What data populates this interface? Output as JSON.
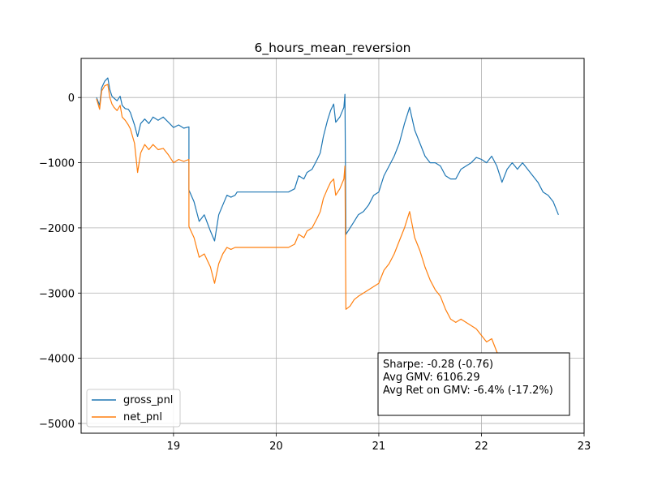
{
  "chart_data": {
    "type": "line",
    "title": "6_hours_mean_reversion",
    "xlabel": "",
    "ylabel": "",
    "xlim": [
      18.1,
      23.0
    ],
    "ylim": [
      -5150,
      600
    ],
    "x_ticks": [
      19,
      20,
      21,
      22,
      23
    ],
    "y_ticks": [
      0,
      -1000,
      -2000,
      -3000,
      -4000,
      -5000
    ],
    "x_tick_labels": [
      "19",
      "20",
      "21",
      "22",
      "23"
    ],
    "y_tick_labels": [
      "0",
      "−1000",
      "−2000",
      "−3000",
      "−4000",
      "−5000"
    ],
    "grid": true,
    "legend_position": "lower-left",
    "series": [
      {
        "name": "gross_pnl",
        "color": "#1f77b4",
        "points": [
          [
            18.25,
            0
          ],
          [
            18.28,
            -120
          ],
          [
            18.3,
            150
          ],
          [
            18.33,
            250
          ],
          [
            18.36,
            300
          ],
          [
            18.38,
            120
          ],
          [
            18.4,
            20
          ],
          [
            18.42,
            -10
          ],
          [
            18.45,
            -50
          ],
          [
            18.48,
            20
          ],
          [
            18.5,
            -120
          ],
          [
            18.53,
            -170
          ],
          [
            18.56,
            -180
          ],
          [
            18.58,
            -230
          ],
          [
            18.62,
            -420
          ],
          [
            18.65,
            -600
          ],
          [
            18.68,
            -400
          ],
          [
            18.72,
            -330
          ],
          [
            18.76,
            -400
          ],
          [
            18.8,
            -300
          ],
          [
            18.85,
            -350
          ],
          [
            18.9,
            -300
          ],
          [
            18.95,
            -380
          ],
          [
            19.0,
            -460
          ],
          [
            19.05,
            -420
          ],
          [
            19.1,
            -470
          ],
          [
            19.15,
            -450
          ],
          [
            19.15,
            -1420
          ],
          [
            19.2,
            -1600
          ],
          [
            19.25,
            -1900
          ],
          [
            19.3,
            -1800
          ],
          [
            19.36,
            -2050
          ],
          [
            19.4,
            -2200
          ],
          [
            19.44,
            -1800
          ],
          [
            19.48,
            -1650
          ],
          [
            19.52,
            -1500
          ],
          [
            19.56,
            -1530
          ],
          [
            19.6,
            -1500
          ],
          [
            19.62,
            -1450
          ],
          [
            19.7,
            -1450
          ],
          [
            19.8,
            -1450
          ],
          [
            19.9,
            -1450
          ],
          [
            20.0,
            -1450
          ],
          [
            20.08,
            -1450
          ],
          [
            20.12,
            -1450
          ],
          [
            20.18,
            -1400
          ],
          [
            20.22,
            -1200
          ],
          [
            20.27,
            -1250
          ],
          [
            20.3,
            -1150
          ],
          [
            20.35,
            -1100
          ],
          [
            20.4,
            -950
          ],
          [
            20.43,
            -850
          ],
          [
            20.46,
            -600
          ],
          [
            20.5,
            -350
          ],
          [
            20.53,
            -200
          ],
          [
            20.56,
            -100
          ],
          [
            20.58,
            -380
          ],
          [
            20.62,
            -300
          ],
          [
            20.66,
            -150
          ],
          [
            20.67,
            50
          ],
          [
            20.68,
            -2100
          ],
          [
            20.72,
            -2000
          ],
          [
            20.76,
            -1900
          ],
          [
            20.8,
            -1800
          ],
          [
            20.85,
            -1750
          ],
          [
            20.9,
            -1650
          ],
          [
            20.95,
            -1500
          ],
          [
            21.0,
            -1450
          ],
          [
            21.05,
            -1200
          ],
          [
            21.1,
            -1050
          ],
          [
            21.15,
            -900
          ],
          [
            21.2,
            -700
          ],
          [
            21.25,
            -400
          ],
          [
            21.3,
            -150
          ],
          [
            21.35,
            -500
          ],
          [
            21.4,
            -700
          ],
          [
            21.45,
            -900
          ],
          [
            21.5,
            -1000
          ],
          [
            21.55,
            -1000
          ],
          [
            21.6,
            -1050
          ],
          [
            21.65,
            -1200
          ],
          [
            21.7,
            -1250
          ],
          [
            21.75,
            -1250
          ],
          [
            21.8,
            -1100
          ],
          [
            21.85,
            -1050
          ],
          [
            21.9,
            -1000
          ],
          [
            21.95,
            -920
          ],
          [
            22.0,
            -950
          ],
          [
            22.05,
            -1000
          ],
          [
            22.1,
            -900
          ],
          [
            22.15,
            -1050
          ],
          [
            22.2,
            -1300
          ],
          [
            22.25,
            -1100
          ],
          [
            22.3,
            -1000
          ],
          [
            22.35,
            -1100
          ],
          [
            22.4,
            -1000
          ],
          [
            22.45,
            -1100
          ],
          [
            22.5,
            -1200
          ],
          [
            22.55,
            -1300
          ],
          [
            22.6,
            -1450
          ],
          [
            22.65,
            -1500
          ],
          [
            22.7,
            -1600
          ],
          [
            22.75,
            -1800
          ]
        ]
      },
      {
        "name": "net_pnl",
        "color": "#ff7f0e",
        "points": [
          [
            18.25,
            -20
          ],
          [
            18.28,
            -180
          ],
          [
            18.3,
            100
          ],
          [
            18.33,
            180
          ],
          [
            18.36,
            200
          ],
          [
            18.38,
            0
          ],
          [
            18.4,
            -100
          ],
          [
            18.42,
            -150
          ],
          [
            18.45,
            -200
          ],
          [
            18.48,
            -120
          ],
          [
            18.5,
            -300
          ],
          [
            18.53,
            -350
          ],
          [
            18.56,
            -420
          ],
          [
            18.58,
            -480
          ],
          [
            18.62,
            -700
          ],
          [
            18.65,
            -1150
          ],
          [
            18.68,
            -850
          ],
          [
            18.72,
            -720
          ],
          [
            18.76,
            -800
          ],
          [
            18.8,
            -720
          ],
          [
            18.85,
            -800
          ],
          [
            18.9,
            -780
          ],
          [
            18.95,
            -880
          ],
          [
            19.0,
            -1000
          ],
          [
            19.05,
            -950
          ],
          [
            19.1,
            -980
          ],
          [
            19.15,
            -950
          ],
          [
            19.15,
            -1980
          ],
          [
            19.2,
            -2150
          ],
          [
            19.25,
            -2450
          ],
          [
            19.3,
            -2400
          ],
          [
            19.36,
            -2600
          ],
          [
            19.4,
            -2850
          ],
          [
            19.44,
            -2550
          ],
          [
            19.48,
            -2400
          ],
          [
            19.52,
            -2300
          ],
          [
            19.56,
            -2330
          ],
          [
            19.6,
            -2300
          ],
          [
            19.62,
            -2300
          ],
          [
            19.7,
            -2300
          ],
          [
            19.8,
            -2300
          ],
          [
            19.9,
            -2300
          ],
          [
            20.0,
            -2300
          ],
          [
            20.08,
            -2300
          ],
          [
            20.12,
            -2300
          ],
          [
            20.18,
            -2250
          ],
          [
            20.22,
            -2100
          ],
          [
            20.27,
            -2150
          ],
          [
            20.3,
            -2050
          ],
          [
            20.35,
            -2000
          ],
          [
            20.4,
            -1850
          ],
          [
            20.43,
            -1750
          ],
          [
            20.46,
            -1550
          ],
          [
            20.5,
            -1400
          ],
          [
            20.53,
            -1300
          ],
          [
            20.56,
            -1250
          ],
          [
            20.58,
            -1500
          ],
          [
            20.62,
            -1400
          ],
          [
            20.66,
            -1250
          ],
          [
            20.67,
            -1050
          ],
          [
            20.68,
            -3250
          ],
          [
            20.72,
            -3200
          ],
          [
            20.76,
            -3100
          ],
          [
            20.8,
            -3050
          ],
          [
            20.85,
            -3000
          ],
          [
            20.9,
            -2950
          ],
          [
            20.95,
            -2900
          ],
          [
            21.0,
            -2850
          ],
          [
            21.05,
            -2650
          ],
          [
            21.1,
            -2550
          ],
          [
            21.15,
            -2400
          ],
          [
            21.2,
            -2200
          ],
          [
            21.25,
            -2000
          ],
          [
            21.3,
            -1750
          ],
          [
            21.35,
            -2150
          ],
          [
            21.4,
            -2350
          ],
          [
            21.45,
            -2600
          ],
          [
            21.5,
            -2800
          ],
          [
            21.55,
            -2950
          ],
          [
            21.6,
            -3050
          ],
          [
            21.65,
            -3250
          ],
          [
            21.7,
            -3400
          ],
          [
            21.75,
            -3450
          ],
          [
            21.8,
            -3400
          ],
          [
            21.85,
            -3450
          ],
          [
            21.9,
            -3500
          ],
          [
            21.95,
            -3550
          ],
          [
            22.0,
            -3650
          ],
          [
            22.05,
            -3750
          ],
          [
            22.1,
            -3700
          ],
          [
            22.15,
            -3900
          ],
          [
            22.2,
            -4150
          ],
          [
            22.25,
            -3950
          ],
          [
            22.3,
            -3950
          ],
          [
            22.35,
            -4100
          ],
          [
            22.4,
            -4000
          ],
          [
            22.45,
            -4150
          ],
          [
            22.5,
            -4300
          ],
          [
            22.55,
            -4450
          ],
          [
            22.6,
            -4550
          ],
          [
            22.65,
            -4650
          ],
          [
            22.7,
            -4750
          ],
          [
            22.75,
            -4850
          ]
        ]
      }
    ],
    "annotations": {
      "sharpe": "Sharpe: -0.28 (-0.76)",
      "avg_gmv": "Avg GMV: 6106.29",
      "avg_ret": "Avg Ret on GMV: -6.4% (-17.2%)"
    }
  }
}
